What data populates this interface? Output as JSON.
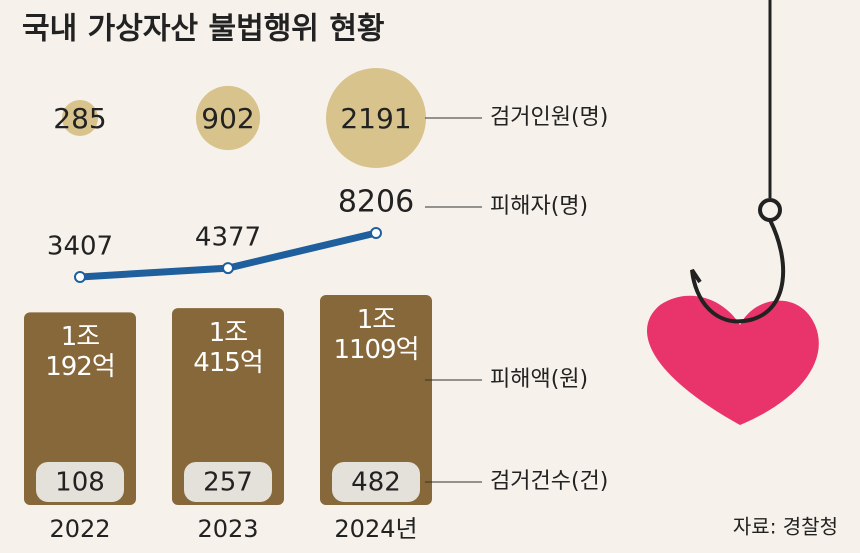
{
  "chart_data": {
    "type": "combo",
    "title": "국내 가상자산 불법행위 현황",
    "categories": [
      "2022",
      "2023",
      "2024년"
    ],
    "series": [
      {
        "name": "검거인원(명)",
        "type": "bubble",
        "color": "#d8c38c",
        "values": [
          285,
          902,
          2191
        ]
      },
      {
        "name": "피해자(명)",
        "type": "line",
        "color": "#1f5f9e",
        "values": [
          3407,
          4377,
          8206
        ]
      },
      {
        "name": "피해액(원)",
        "type": "bar",
        "color": "#86683a",
        "values": [
          10192,
          10415,
          11109
        ],
        "value_labels": [
          "1조\n192억",
          "1조\n415억",
          "1조\n1109억"
        ]
      },
      {
        "name": "검거건수(건)",
        "type": "label",
        "color": "#e4e0da",
        "values": [
          108,
          257,
          482
        ]
      }
    ],
    "source": "자료: 경찰청"
  }
}
